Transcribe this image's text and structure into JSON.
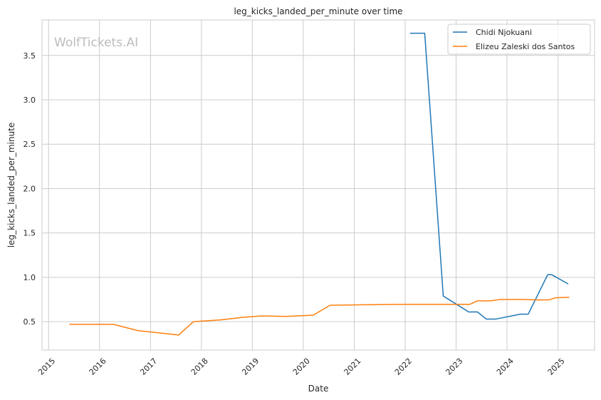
{
  "chart_data": {
    "type": "line",
    "title": "leg_kicks_landed_per_minute over time",
    "xlabel": "Date",
    "ylabel": "leg_kicks_landed_per_minute",
    "watermark": "WolfTickets.AI",
    "xlim": [
      "2014-11-15",
      "2025-09-20"
    ],
    "ylim": [
      0.18,
      3.9
    ],
    "x_ticks": [
      "2015",
      "2016",
      "2017",
      "2018",
      "2019",
      "2020",
      "2021",
      "2022",
      "2023",
      "2024",
      "2025"
    ],
    "y_ticks": [
      0.5,
      1.0,
      1.5,
      2.0,
      2.5,
      3.0,
      3.5
    ],
    "y_tick_labels": [
      "0.5",
      "1.0",
      "1.5",
      "2.0",
      "2.5",
      "3.0",
      "3.5"
    ],
    "grid": true,
    "legend_position": "top-right",
    "series": [
      {
        "name": "Chidi Njokuani",
        "color": "#1f77b4",
        "points": [
          {
            "x": "2022-02-05",
            "y": 3.75
          },
          {
            "x": "2022-05-21",
            "y": 3.75
          },
          {
            "x": "2022-10-01",
            "y": 0.79
          },
          {
            "x": "2023-04-01",
            "y": 0.61
          },
          {
            "x": "2023-06-03",
            "y": 0.61
          },
          {
            "x": "2023-08-05",
            "y": 0.53
          },
          {
            "x": "2023-10-14",
            "y": 0.53
          },
          {
            "x": "2024-04-06",
            "y": 0.585
          },
          {
            "x": "2024-06-01",
            "y": 0.585
          },
          {
            "x": "2024-10-19",
            "y": 1.03
          },
          {
            "x": "2024-11-16",
            "y": 1.03
          },
          {
            "x": "2025-03-15",
            "y": 0.925
          }
        ]
      },
      {
        "name": "Elizeu Zaleski dos Santos",
        "color": "#ff7f0e",
        "points": [
          {
            "x": "2015-05-30",
            "y": 0.47
          },
          {
            "x": "2016-04-10",
            "y": 0.47
          },
          {
            "x": "2016-10-01",
            "y": 0.4
          },
          {
            "x": "2017-01-28",
            "y": 0.38
          },
          {
            "x": "2017-07-22",
            "y": 0.35
          },
          {
            "x": "2017-11-04",
            "y": 0.5
          },
          {
            "x": "2018-05-19",
            "y": 0.52
          },
          {
            "x": "2018-10-27",
            "y": 0.55
          },
          {
            "x": "2019-03-09",
            "y": 0.565
          },
          {
            "x": "2019-08-31",
            "y": 0.56
          },
          {
            "x": "2020-01-25",
            "y": 0.57
          },
          {
            "x": "2020-03-14",
            "y": 0.575
          },
          {
            "x": "2020-07-11",
            "y": 0.685
          },
          {
            "x": "2021-02-20",
            "y": 0.69
          },
          {
            "x": "2021-10-16",
            "y": 0.695
          },
          {
            "x": "2022-07-16",
            "y": 0.695
          },
          {
            "x": "2023-01-21",
            "y": 0.695
          },
          {
            "x": "2023-04-08",
            "y": 0.695
          },
          {
            "x": "2023-06-03",
            "y": 0.735
          },
          {
            "x": "2023-09-09",
            "y": 0.735
          },
          {
            "x": "2023-11-11",
            "y": 0.75
          },
          {
            "x": "2024-03-30",
            "y": 0.75
          },
          {
            "x": "2024-08-17",
            "y": 0.745
          },
          {
            "x": "2024-10-26",
            "y": 0.745
          },
          {
            "x": "2024-12-14",
            "y": 0.77
          },
          {
            "x": "2025-03-22",
            "y": 0.775
          }
        ]
      }
    ]
  }
}
